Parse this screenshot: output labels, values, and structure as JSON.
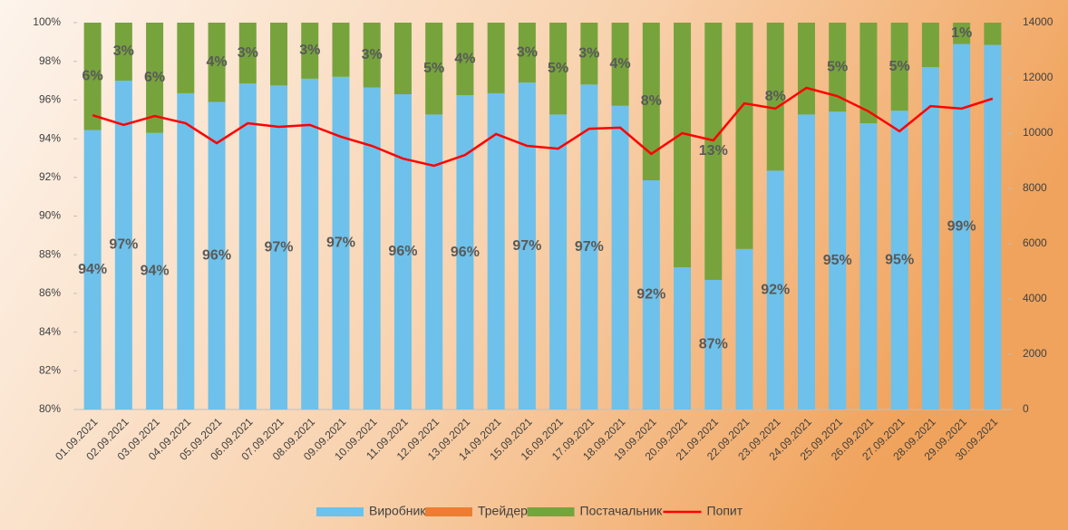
{
  "chart_data": {
    "type": "bar",
    "stacked": true,
    "categories": [
      "01.09.2021",
      "02.09.2021",
      "03.09.2021",
      "04.09.2021",
      "05.09.2021",
      "06.09.2021",
      "07.09.2021",
      "08.09.2021",
      "09.09.2021",
      "10.09.2021",
      "11.09.2021",
      "12.09.2021",
      "13.09.2021",
      "14.09.2021",
      "15.09.2021",
      "16.09.2021",
      "17.09.2021",
      "18.09.2021",
      "19.09.2021",
      "20.09.2021",
      "21.09.2021",
      "22.09.2021",
      "23.09.2021",
      "24.09.2021",
      "25.09.2021",
      "26.09.2021",
      "27.09.2021",
      "28.09.2021",
      "29.09.2021",
      "30.09.2021"
    ],
    "series": [
      {
        "name": "Виробник",
        "color": "#6ec1ea",
        "values": [
          94.45,
          97.0,
          94.3,
          96.35,
          95.9,
          96.85,
          96.75,
          97.1,
          97.2,
          96.65,
          96.3,
          95.25,
          96.25,
          96.35,
          96.9,
          95.25,
          96.8,
          95.7,
          91.85,
          87.35,
          86.7,
          88.3,
          92.35,
          95.25,
          95.4,
          94.8,
          95.45,
          97.7,
          98.9,
          98.85
        ],
        "value_labels": [
          "94%",
          "97%",
          "94%",
          null,
          "96%",
          null,
          "97%",
          null,
          "97%",
          null,
          "96%",
          null,
          "96%",
          null,
          "97%",
          null,
          "97%",
          null,
          "92%",
          null,
          "87%",
          null,
          "92%",
          null,
          "95%",
          null,
          "95%",
          null,
          "99%",
          null
        ]
      },
      {
        "name": "Трейдер",
        "color": "#ed7d31",
        "values": [
          0,
          0,
          0,
          0,
          0,
          0,
          0,
          0,
          0,
          0,
          0,
          0,
          0,
          0,
          0,
          0,
          0,
          0,
          0,
          0,
          0,
          0,
          0,
          0,
          0,
          0,
          0,
          0,
          0,
          0
        ]
      },
      {
        "name": "Постачальник",
        "color": "#77a33d",
        "values": [
          5.55,
          3.0,
          5.7,
          3.65,
          4.1,
          3.15,
          3.25,
          2.9,
          2.8,
          3.35,
          3.7,
          4.75,
          3.75,
          3.65,
          3.1,
          4.75,
          3.2,
          4.3,
          8.15,
          12.65,
          13.3,
          11.7,
          7.65,
          4.75,
          4.6,
          5.2,
          4.55,
          2.3,
          1.1,
          1.15
        ],
        "value_labels": [
          "6%",
          "3%",
          "6%",
          null,
          "4%",
          "3%",
          null,
          "3%",
          null,
          "3%",
          null,
          "5%",
          "4%",
          null,
          "3%",
          "5%",
          "3%",
          "4%",
          "8%",
          null,
          "13%",
          null,
          "8%",
          null,
          "5%",
          null,
          "5%",
          null,
          "1%",
          null
        ]
      },
      {
        "name": "Попит",
        "color": "#ff0000",
        "type": "line",
        "axis": "y2",
        "values": [
          10650,
          10300,
          10620,
          10360,
          9640,
          10360,
          10230,
          10300,
          9870,
          9540,
          9080,
          8820,
          9210,
          9970,
          9540,
          9440,
          10160,
          10200,
          9250,
          10000,
          9740,
          11080,
          10890,
          11640,
          11340,
          10790,
          10070,
          10980,
          10890,
          11250
        ]
      }
    ],
    "ylim": [
      80,
      100
    ],
    "yticks": [
      {
        "value": 80,
        "label": "80%"
      },
      {
        "value": 82,
        "label": "82%"
      },
      {
        "value": 84,
        "label": "84%"
      },
      {
        "value": 86,
        "label": "86%"
      },
      {
        "value": 88,
        "label": "88%"
      },
      {
        "value": 90,
        "label": "90%"
      },
      {
        "value": 92,
        "label": "92%"
      },
      {
        "value": 94,
        "label": "94%"
      },
      {
        "value": 96,
        "label": "96%"
      },
      {
        "value": 98,
        "label": "98%"
      },
      {
        "value": 100,
        "label": "100%"
      }
    ],
    "y2lim": [
      0,
      14000
    ],
    "y2ticks": [
      0,
      2000,
      4000,
      6000,
      8000,
      10000,
      12000,
      14000
    ],
    "legend": "bottom"
  }
}
